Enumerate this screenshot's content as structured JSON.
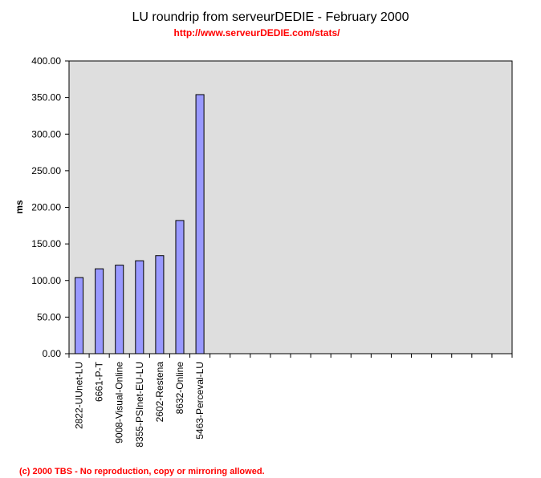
{
  "colors": {
    "plot_background": "#dedede",
    "bar_fill": "#9999ff",
    "bar_stroke": "#000000",
    "subtitle": "#ff0000",
    "footer": "#ff0000"
  },
  "chart_data": {
    "type": "bar",
    "title": "LU roundrip from serveurDEDIE - February 2000",
    "subtitle": "http://www.serveurDEDIE.com/stats/",
    "xlabel": "",
    "ylabel": "ms",
    "ylim": [
      0,
      400
    ],
    "yticks": [
      "0.00",
      "50.00",
      "100.00",
      "150.00",
      "200.00",
      "250.00",
      "300.00",
      "350.00",
      "400.00"
    ],
    "grid": false,
    "legend": "none",
    "categories": [
      "2822-UUnet-LU",
      "6661-P-T",
      "9008-Visual-Online",
      "8355-PSInet-EU-LU",
      "2602-Restena",
      "8632-Online",
      "5463-Perceval-LU"
    ],
    "values": [
      104,
      116,
      121,
      127,
      134,
      182,
      354
    ],
    "empty_category_slots": 15
  },
  "footer": "(c) 2000 TBS - No reproduction, copy or mirroring allowed."
}
